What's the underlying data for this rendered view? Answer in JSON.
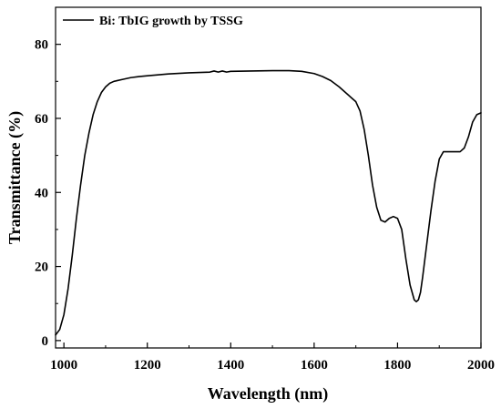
{
  "chart_data": {
    "type": "line",
    "xlabel": "Wavelength (nm)",
    "ylabel": "Transmittance (%)",
    "xlim": [
      980,
      2000
    ],
    "ylim": [
      -2,
      90
    ],
    "x_ticks": [
      1000,
      1200,
      1400,
      1600,
      1800,
      2000
    ],
    "y_ticks": [
      0,
      20,
      40,
      60,
      80
    ],
    "x_tick_labels": [
      "1000",
      "1200",
      "1400",
      "1600",
      "1800",
      "2000"
    ],
    "y_tick_labels": [
      "0",
      "20",
      "40",
      "60",
      "80"
    ],
    "grid": false,
    "legend_position": "top-left",
    "series": [
      {
        "name": "Bi: TbIG growth by TSSG",
        "color": "#000000",
        "x": [
          980,
          990,
          1000,
          1010,
          1020,
          1030,
          1040,
          1050,
          1060,
          1070,
          1080,
          1090,
          1100,
          1110,
          1120,
          1140,
          1160,
          1180,
          1200,
          1250,
          1300,
          1350,
          1360,
          1370,
          1380,
          1390,
          1400,
          1450,
          1500,
          1540,
          1570,
          1600,
          1620,
          1640,
          1660,
          1680,
          1690,
          1700,
          1710,
          1720,
          1730,
          1740,
          1750,
          1760,
          1770,
          1780,
          1790,
          1800,
          1810,
          1815,
          1820,
          1830,
          1840,
          1845,
          1850,
          1855,
          1860,
          1870,
          1880,
          1890,
          1900,
          1910,
          1920,
          1930,
          1940,
          1950,
          1960,
          1970,
          1980,
          1990,
          2000
        ],
        "values": [
          1.5,
          3,
          7,
          14,
          23,
          33,
          42,
          50,
          56,
          61,
          64.5,
          67,
          68.5,
          69.5,
          70,
          70.5,
          71,
          71.3,
          71.5,
          72,
          72.3,
          72.5,
          72.8,
          72.5,
          72.8,
          72.5,
          72.7,
          72.8,
          72.9,
          72.9,
          72.7,
          72.1,
          71.3,
          70.2,
          68.5,
          66.5,
          65.5,
          64.5,
          62,
          57,
          50,
          42,
          36,
          32.5,
          32,
          33,
          33.5,
          33,
          30,
          26,
          22,
          15,
          11,
          10.5,
          11,
          13,
          17,
          26,
          35,
          43,
          49,
          51,
          51,
          51,
          51,
          51,
          52,
          55,
          59,
          61,
          61.5
        ]
      }
    ]
  }
}
